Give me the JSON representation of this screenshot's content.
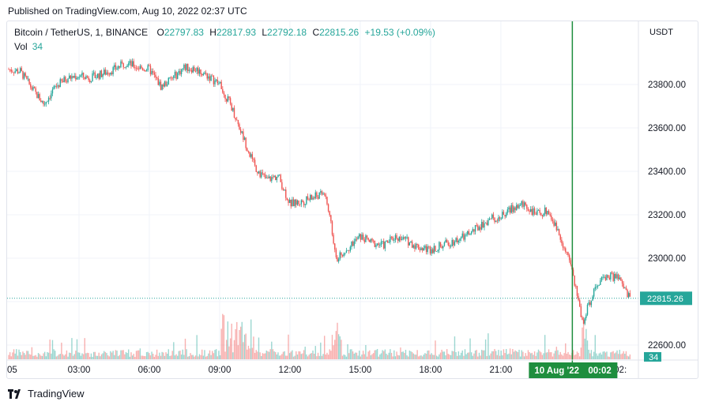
{
  "header": {
    "published": "Published on TradingView.com, Aug 10, 2022 02:37 UTC"
  },
  "legend": {
    "symbol": "Bitcoin / TetherUS, 1, BINANCE",
    "o_label": "O",
    "o_value": "22797.83",
    "h_label": "H",
    "h_value": "22817.93",
    "l_label": "L",
    "l_value": "22792.18",
    "c_label": "C",
    "c_value": "22815.26",
    "change": "+19.53 (+0.09%)"
  },
  "volume_legend": {
    "label": "Vol",
    "value": "34"
  },
  "footer": {
    "brand": "TradingView"
  },
  "colors": {
    "up": "#26a69a",
    "down": "#ef5350",
    "grid": "#f0f3fa",
    "crosshair": "#1e8e3e",
    "price_tag": "#26a69a",
    "text": "#131722"
  },
  "chart_data": {
    "type": "candlestick",
    "currency": "USDT",
    "yaxis_ticks": [
      "23800.00",
      "23600.00",
      "23400.00",
      "23200.00",
      "23000.00",
      "22800.00",
      "22600.00"
    ],
    "ylim": [
      22550,
      24050
    ],
    "xaxis_ticks": [
      "05",
      "03:00",
      "06:00",
      "09:00",
      "12:00",
      "15:00",
      "18:00",
      "21:00",
      "02:"
    ],
    "last_price": "22815.26",
    "last_volume": "34",
    "crosshair_date": "10 Aug '22",
    "crosshair_time": "00:02",
    "price_series": {
      "t_hours": [
        0,
        0.5,
        1,
        1.5,
        2,
        2.5,
        3,
        3.5,
        4,
        4.5,
        5,
        5.5,
        6,
        6.5,
        7,
        7.5,
        8,
        8.5,
        9,
        9.5,
        10,
        10.5,
        11,
        11.5,
        12,
        12.5,
        13,
        13.5,
        14,
        14.5,
        15,
        15.5,
        16,
        16.5,
        17,
        17.5,
        18,
        18.5,
        19,
        19.5,
        20,
        20.5,
        21,
        21.5,
        22,
        22.5,
        23,
        23.5,
        24,
        24.5,
        25,
        25.5,
        26,
        26.5
      ],
      "close": [
        23870,
        23860,
        23780,
        23710,
        23790,
        23830,
        23840,
        23830,
        23850,
        23870,
        23900,
        23880,
        23870,
        23790,
        23830,
        23880,
        23870,
        23840,
        23800,
        23700,
        23560,
        23420,
        23360,
        23380,
        23250,
        23260,
        23280,
        23300,
        23000,
        23050,
        23100,
        23070,
        23060,
        23100,
        23080,
        23050,
        23040,
        23060,
        23080,
        23100,
        23140,
        23180,
        23190,
        23230,
        23250,
        23200,
        23220,
        23110,
        22960,
        22700,
        22870,
        22920,
        22910,
        22815
      ]
    }
  }
}
